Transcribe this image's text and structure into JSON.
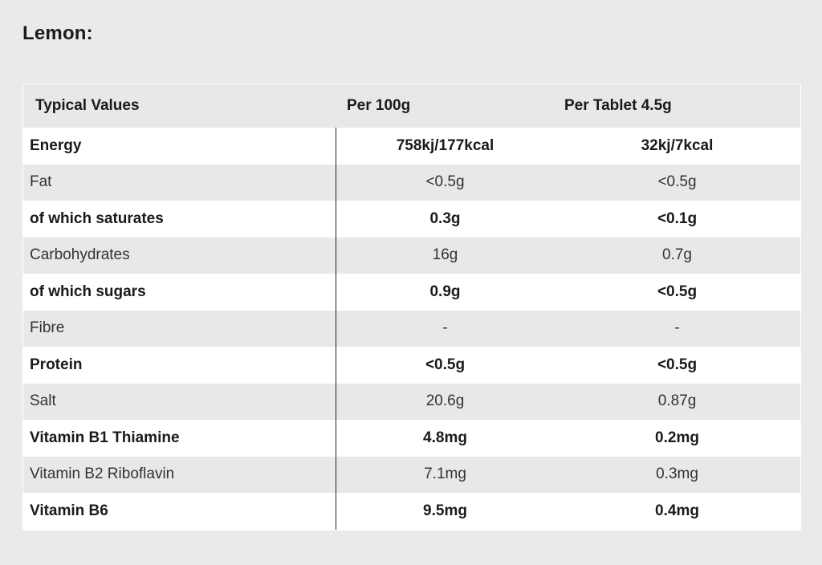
{
  "title": "Lemon:",
  "table": {
    "headers": [
      "Typical Values",
      "Per 100g",
      "Per Tablet 4.5g"
    ],
    "rows": [
      {
        "label": "Energy",
        "per_100g": "758kj/177kcal",
        "per_tablet": "32kj/7kcal",
        "bold": true
      },
      {
        "label": "Fat",
        "per_100g": "<0.5g",
        "per_tablet": "<0.5g",
        "bold": false
      },
      {
        "label": "of which saturates",
        "per_100g": "0.3g",
        "per_tablet": "<0.1g",
        "bold": true
      },
      {
        "label": "Carbohydrates",
        "per_100g": "16g",
        "per_tablet": "0.7g",
        "bold": false
      },
      {
        "label": "of which sugars",
        "per_100g": "0.9g",
        "per_tablet": "<0.5g",
        "bold": true
      },
      {
        "label": "Fibre",
        "per_100g": "-",
        "per_tablet": "-",
        "bold": false
      },
      {
        "label": "Protein",
        "per_100g": "<0.5g",
        "per_tablet": "<0.5g",
        "bold": true
      },
      {
        "label": "Salt",
        "per_100g": "20.6g",
        "per_tablet": "0.87g",
        "bold": false
      },
      {
        "label": "Vitamin B1 Thiamine",
        "per_100g": "4.8mg",
        "per_tablet": "0.2mg",
        "bold": true
      },
      {
        "label": "Vitamin B2 Riboflavin",
        "per_100g": "7.1mg",
        "per_tablet": "0.3mg",
        "bold": false
      },
      {
        "label": "Vitamin B6",
        "per_100g": "9.5mg",
        "per_tablet": "0.4mg",
        "bold": true
      }
    ]
  },
  "colors": {
    "background": "#ebeae8",
    "row_light": "#ffffff",
    "row_shade": "#e9e8e6",
    "divider": "#222222"
  }
}
